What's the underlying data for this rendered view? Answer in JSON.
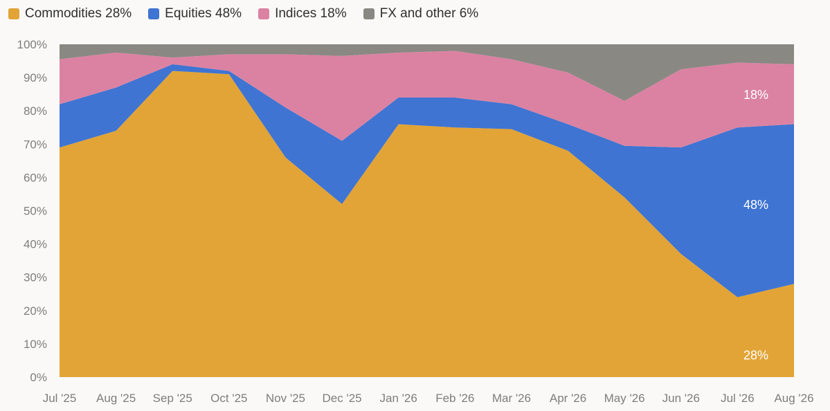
{
  "legend": [
    {
      "label": "Commodities 28%",
      "color": "#e2a436"
    },
    {
      "label": "Equities 48%",
      "color": "#3f74d2"
    },
    {
      "label": "Indices 18%",
      "color": "#db82a2"
    },
    {
      "label": "FX and other 6%",
      "color": "#8a8883"
    }
  ],
  "chart_data": {
    "type": "area",
    "stacked": true,
    "categories": [
      "Jul '25",
      "Aug '25",
      "Sep '25",
      "Oct '25",
      "Nov '25",
      "Dec '25",
      "Jan '26",
      "Feb '26",
      "Mar '26",
      "Apr '26",
      "May '26",
      "Jun '26",
      "Jul '26",
      "Aug '26"
    ],
    "ylim": [
      0,
      100
    ],
    "yticks": [
      "0%",
      "10%",
      "20%",
      "30%",
      "40%",
      "50%",
      "60%",
      "70%",
      "80%",
      "90%",
      "100%"
    ],
    "grid": false,
    "legend_position": "top-left",
    "series": [
      {
        "name": "Commodities",
        "color": "#e2a436",
        "values": [
          69,
          74,
          92,
          91,
          66,
          52,
          76,
          75,
          74.5,
          68,
          54,
          37,
          24,
          28
        ]
      },
      {
        "name": "Equities",
        "color": "#3f74d2",
        "values": [
          13,
          13,
          2,
          1,
          15,
          19,
          8,
          9,
          7.5,
          8,
          15.5,
          32,
          51,
          48
        ]
      },
      {
        "name": "Indices",
        "color": "#db82a2",
        "values": [
          13.5,
          10.5,
          2,
          5,
          16,
          25.5,
          13.5,
          14,
          13.5,
          15.5,
          13.5,
          23.5,
          19.5,
          18
        ]
      },
      {
        "name": "FX and other",
        "color": "#8a8883",
        "values": [
          4.5,
          2.5,
          4,
          3,
          3,
          3.5,
          2.5,
          2,
          4.5,
          8.5,
          17,
          7.5,
          5.5,
          6
        ]
      }
    ],
    "annotations": [
      {
        "text": "28%",
        "series": "Commodities"
      },
      {
        "text": "48%",
        "series": "Equities"
      },
      {
        "text": "18%",
        "series": "Indices"
      }
    ]
  }
}
